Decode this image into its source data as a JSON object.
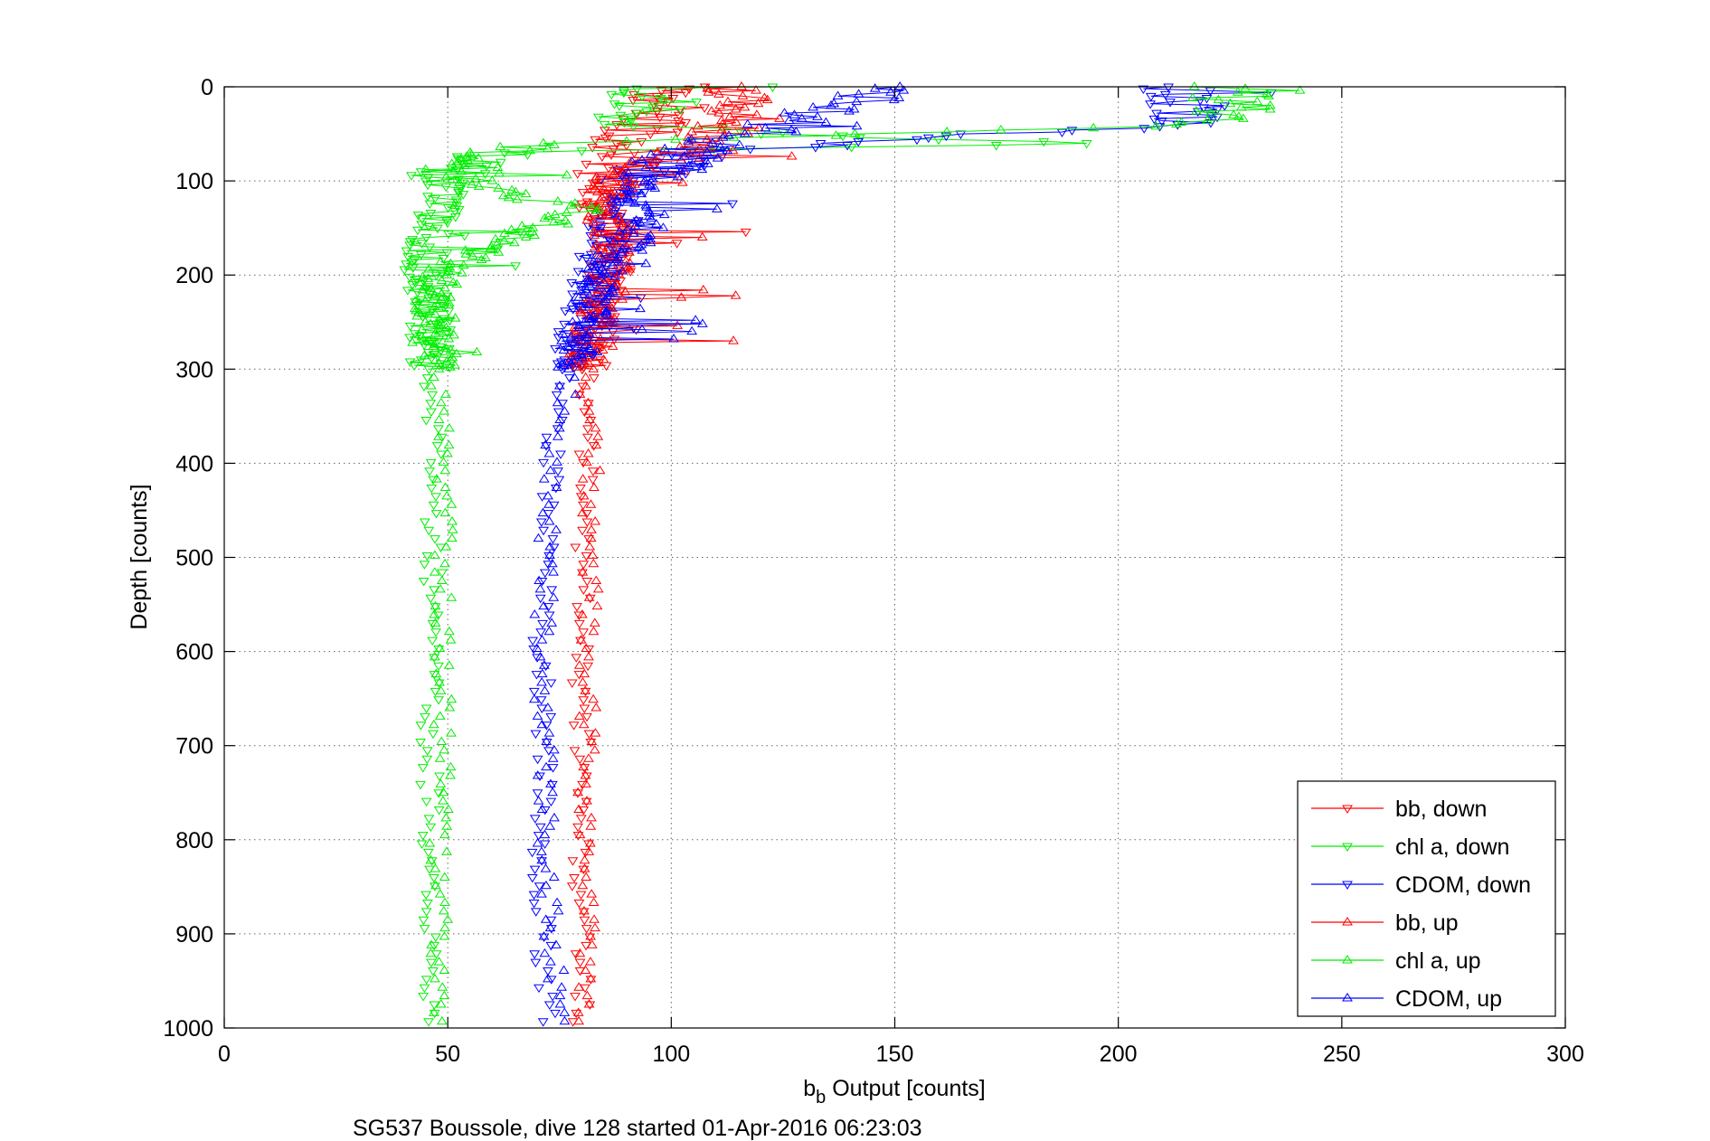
{
  "chart_data": {
    "type": "scatter",
    "xlabel_main": "b",
    "xlabel_sub": "b",
    "xlabel_rest": " Output [counts]",
    "ylabel": "Depth [counts]",
    "caption": "SG537 Boussole, dive 128 started 01-Apr-2016 06:23:03",
    "xlim": [
      0,
      300
    ],
    "ylim": [
      0,
      1000
    ],
    "y_reversed": true,
    "grid": true,
    "x_ticks": [
      "0",
      "50",
      "100",
      "150",
      "200",
      "250",
      "300"
    ],
    "y_ticks": [
      "0",
      "100",
      "200",
      "300",
      "400",
      "500",
      "600",
      "700",
      "800",
      "900",
      "1000"
    ],
    "legend_position": "bottom-right",
    "series": [
      {
        "name": "bb, down",
        "color": "#ff0000",
        "marker": "triangle-down",
        "connected_above": 300,
        "profile": [
          [
            0,
            100
          ],
          [
            20,
            99
          ],
          [
            40,
            94
          ],
          [
            60,
            91
          ],
          [
            80,
            89
          ],
          [
            100,
            86
          ],
          [
            130,
            84
          ],
          [
            160,
            88
          ],
          [
            190,
            87
          ],
          [
            220,
            85
          ],
          [
            260,
            83
          ],
          [
            300,
            81
          ],
          [
            400,
            81
          ],
          [
            500,
            80
          ],
          [
            600,
            80
          ],
          [
            700,
            80
          ],
          [
            800,
            80
          ],
          [
            900,
            80
          ],
          [
            1000,
            80
          ]
        ]
      },
      {
        "name": "chl a, down",
        "color": "#00ee00",
        "marker": "triangle-down",
        "connected_above": 300,
        "profile": [
          [
            0,
            95
          ],
          [
            20,
            94
          ],
          [
            40,
            90
          ],
          [
            55,
            140
          ],
          [
            60,
            200
          ],
          [
            70,
            60
          ],
          [
            90,
            50
          ],
          [
            110,
            49
          ],
          [
            140,
            47
          ],
          [
            170,
            45
          ],
          [
            200,
            45
          ],
          [
            250,
            46
          ],
          [
            300,
            46
          ],
          [
            400,
            47
          ],
          [
            500,
            47
          ],
          [
            600,
            46
          ],
          [
            700,
            46
          ],
          [
            800,
            46
          ],
          [
            900,
            46
          ],
          [
            1000,
            47
          ]
        ]
      },
      {
        "name": "CDOM, down",
        "color": "#0000ff",
        "marker": "triangle-down",
        "connected_above": 300,
        "profile": [
          [
            0,
            210
          ],
          [
            20,
            215
          ],
          [
            40,
            212
          ],
          [
            55,
            150
          ],
          [
            70,
            110
          ],
          [
            90,
            95
          ],
          [
            120,
            88
          ],
          [
            150,
            86
          ],
          [
            180,
            84
          ],
          [
            220,
            82
          ],
          [
            260,
            79
          ],
          [
            300,
            77
          ],
          [
            400,
            73
          ],
          [
            500,
            72
          ],
          [
            600,
            71
          ],
          [
            700,
            72
          ],
          [
            800,
            71
          ],
          [
            900,
            71
          ],
          [
            1000,
            72
          ]
        ]
      },
      {
        "name": "bb, up",
        "color": "#ff0000",
        "marker": "triangle-up",
        "connected_above": 300,
        "profile": [
          [
            0,
            115
          ],
          [
            20,
            118
          ],
          [
            40,
            115
          ],
          [
            60,
            110
          ],
          [
            80,
            100
          ],
          [
            100,
            88
          ],
          [
            130,
            84
          ],
          [
            160,
            88
          ],
          [
            190,
            86
          ],
          [
            220,
            85
          ],
          [
            260,
            83
          ],
          [
            300,
            81
          ],
          [
            400,
            82
          ],
          [
            500,
            82
          ],
          [
            600,
            81
          ],
          [
            700,
            81
          ],
          [
            800,
            81
          ],
          [
            900,
            81
          ],
          [
            1000,
            81
          ]
        ]
      },
      {
        "name": "chl a, up",
        "color": "#00ee00",
        "marker": "triangle-up",
        "connected_above": 300,
        "profile": [
          [
            0,
            225
          ],
          [
            20,
            226
          ],
          [
            40,
            222
          ],
          [
            60,
            70
          ],
          [
            70,
            60
          ],
          [
            90,
            52
          ],
          [
            110,
            60
          ],
          [
            130,
            80
          ],
          [
            150,
            70
          ],
          [
            170,
            60
          ],
          [
            190,
            50
          ],
          [
            210,
            48
          ],
          [
            250,
            47
          ],
          [
            300,
            47
          ],
          [
            400,
            49
          ],
          [
            500,
            49
          ],
          [
            600,
            49
          ],
          [
            700,
            49
          ],
          [
            800,
            48
          ],
          [
            900,
            48
          ],
          [
            1000,
            48
          ]
        ]
      },
      {
        "name": "CDOM, up",
        "color": "#0000ff",
        "marker": "triangle-up",
        "connected_above": 300,
        "profile": [
          [
            0,
            145
          ],
          [
            20,
            140
          ],
          [
            40,
            125
          ],
          [
            60,
            110
          ],
          [
            80,
            100
          ],
          [
            100,
            95
          ],
          [
            120,
            90
          ],
          [
            140,
            95
          ],
          [
            160,
            92
          ],
          [
            180,
            88
          ],
          [
            200,
            85
          ],
          [
            230,
            82
          ],
          [
            260,
            80
          ],
          [
            300,
            78
          ],
          [
            400,
            73
          ],
          [
            500,
            72
          ],
          [
            600,
            71
          ],
          [
            700,
            72
          ],
          [
            800,
            72
          ],
          [
            900,
            73
          ],
          [
            1000,
            75
          ]
        ]
      }
    ]
  }
}
